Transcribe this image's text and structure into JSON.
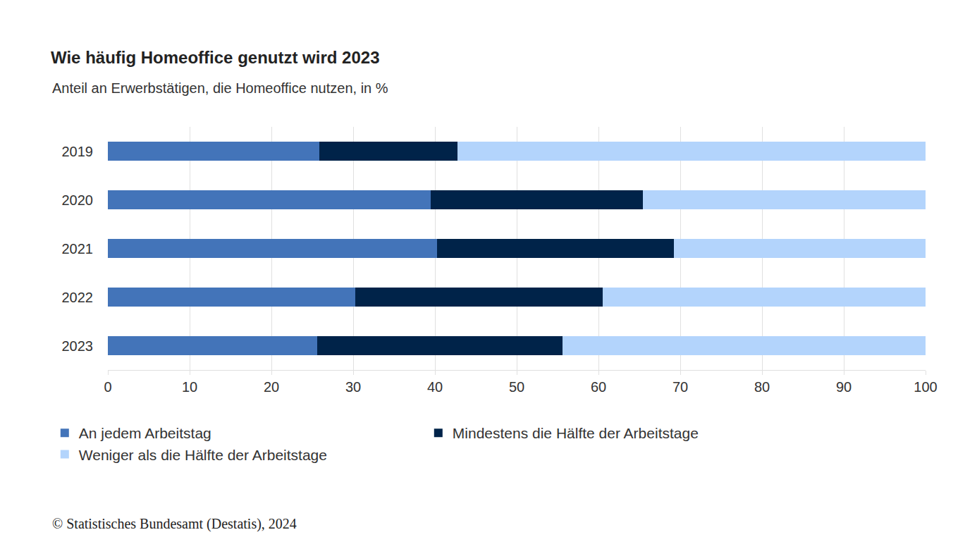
{
  "chart_data": {
    "type": "bar",
    "orientation": "horizontal",
    "stacked": true,
    "title": "Wie häufig Homeoffice genutzt wird 2023",
    "subtitle": "Anteil an Erwerbstätigen, die Homeoffice nutzen, in %",
    "source": "© Statistisches Bundesamt (Destatis), 2024",
    "categories": [
      "2019",
      "2020",
      "2021",
      "2022",
      "2023"
    ],
    "series": [
      {
        "name": "An jedem Arbeitstag",
        "color": "#4374b9",
        "values": [
          25.9,
          39.5,
          40.3,
          30.3,
          25.6
        ]
      },
      {
        "name": "Mindestens die Hälfte der Arbeitstage",
        "color": "#002349",
        "values": [
          16.9,
          25.9,
          28.9,
          30.2,
          30.0
        ]
      },
      {
        "name": "Weniger als die Hälfte der Arbeitstage",
        "color": "#b3d4fc",
        "values": [
          57.2,
          34.6,
          30.8,
          39.5,
          44.4
        ]
      }
    ],
    "xlim": [
      0,
      100
    ],
    "xticks": [
      0,
      10,
      20,
      30,
      40,
      50,
      60,
      70,
      80,
      90,
      100
    ],
    "grid": true,
    "legend": "bottom"
  }
}
